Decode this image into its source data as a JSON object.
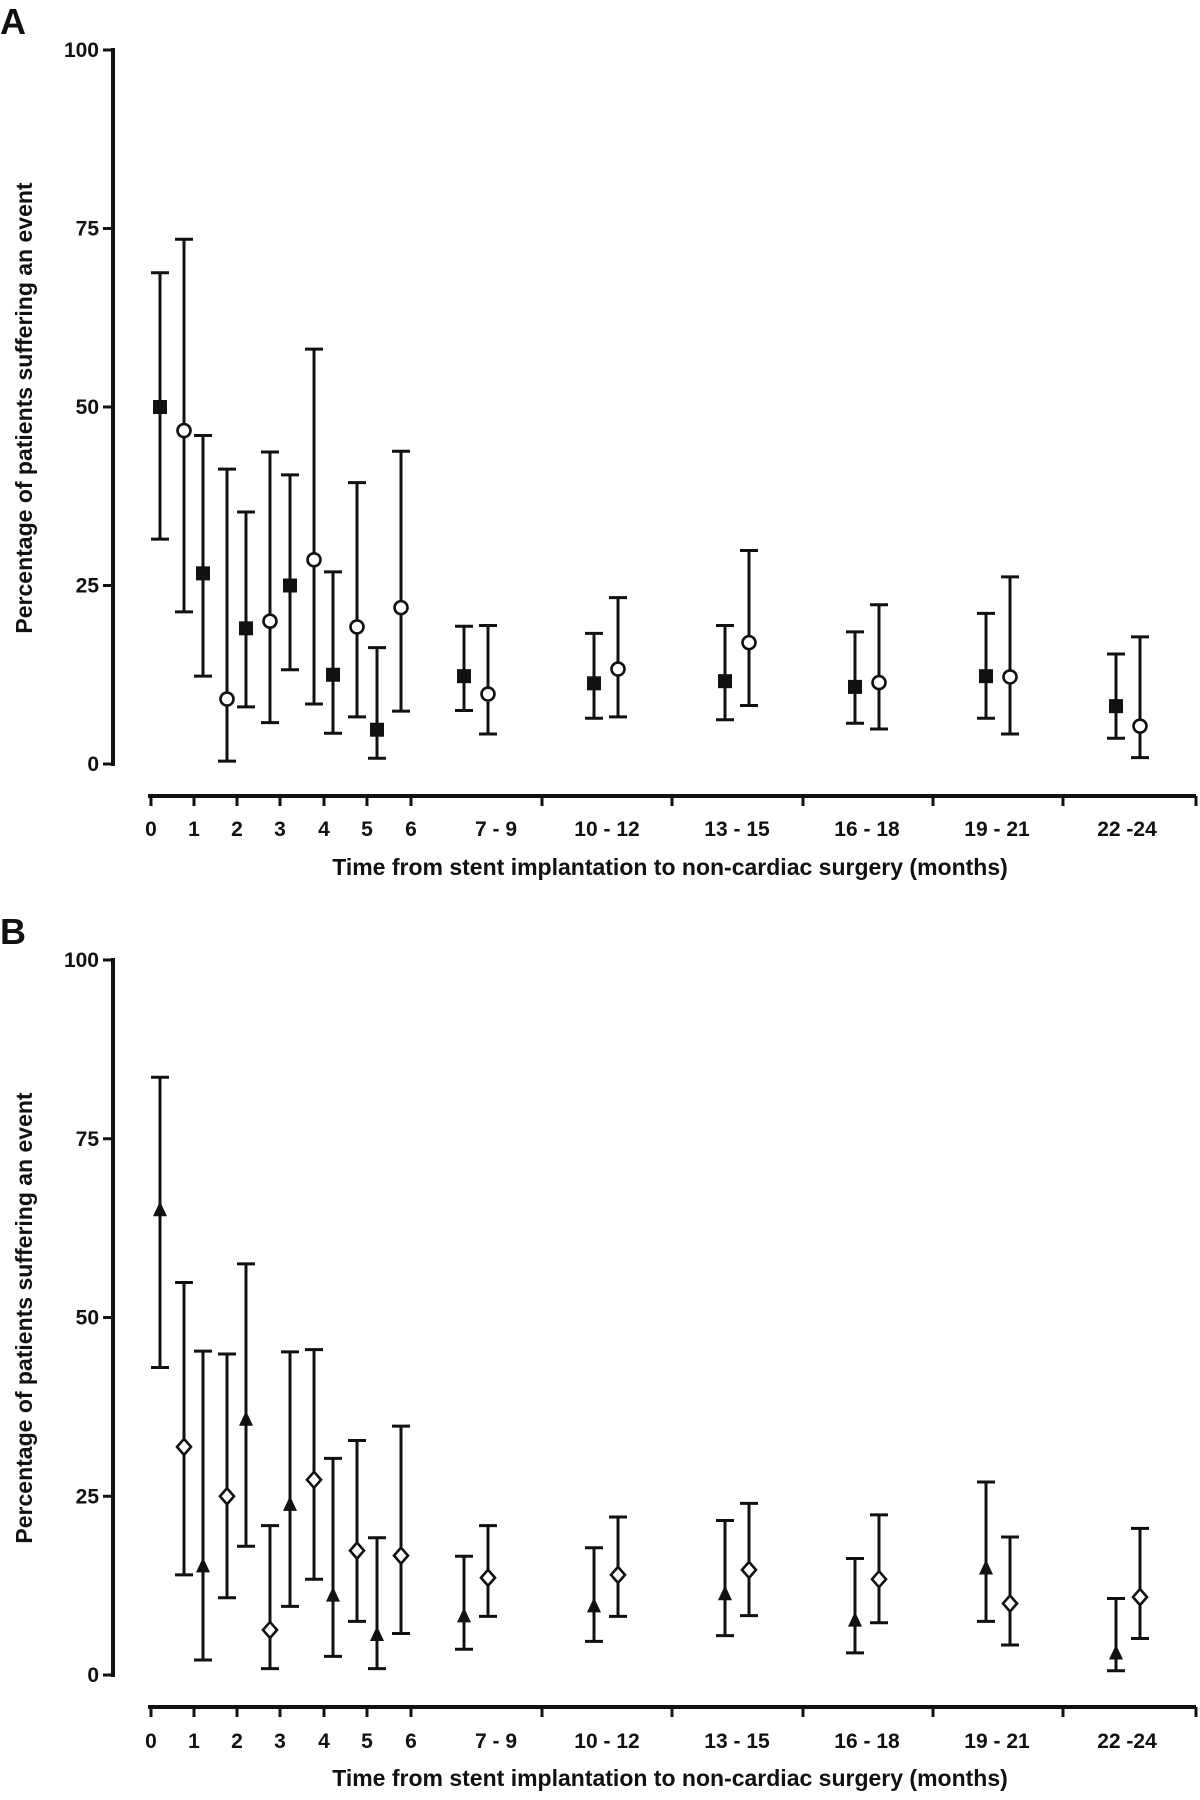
{
  "chart_data": [
    {
      "panel": "A",
      "type": "scatter",
      "ylabel": "Percentage of patients suffering an event",
      "xlabel": "Time from stent implantation to non-cardiac surgery (months)",
      "ylim": [
        0,
        100
      ],
      "y_ticks": [
        "0",
        "25",
        "50",
        "75",
        "100"
      ],
      "x_tick_labels": [
        "0",
        "1",
        "2",
        "3",
        "4",
        "5",
        "6",
        "7 - 9",
        "10 - 12",
        "13 - 15",
        "16 - 18",
        "19 - 21",
        "22 -24"
      ],
      "categories": [
        "0-1",
        "1-2",
        "2-3",
        "3-4",
        "4-5",
        "5-6",
        "7 - 9",
        "10 - 12",
        "13 - 15",
        "16 - 18",
        "19 - 21",
        "22 -24"
      ],
      "series": [
        {
          "marker": "filled-square",
          "color": "#111111",
          "values": [
            50,
            26.7,
            19,
            25,
            12.5,
            4.8,
            12.3,
            11.3,
            11.6,
            10.8,
            12.3,
            8.1
          ],
          "lower": [
            31.5,
            12.3,
            8,
            13.2,
            4.3,
            0.8,
            7.5,
            6.4,
            6.2,
            5.7,
            6.4,
            3.6
          ],
          "upper": [
            68.8,
            46,
            35.3,
            40.5,
            26.9,
            16.3,
            19.3,
            18.3,
            19.4,
            18.5,
            21.1,
            15.4
          ]
        },
        {
          "marker": "open-circle",
          "color": "#111111",
          "values": [
            46.7,
            9.1,
            20,
            28.6,
            19.2,
            21.9,
            9.8,
            13.3,
            17,
            11.4,
            12.2,
            5.3
          ],
          "lower": [
            21.3,
            0.4,
            5.8,
            8.4,
            6.6,
            7.4,
            4.2,
            6.6,
            8.2,
            4.9,
            4.2,
            0.9
          ],
          "upper": [
            73.5,
            41.3,
            43.7,
            58.1,
            39.4,
            43.8,
            19.4,
            23.3,
            29.9,
            22.3,
            26.2,
            17.8
          ]
        }
      ]
    },
    {
      "panel": "B",
      "type": "scatter",
      "ylabel": "Percentage of patients suffering an event",
      "xlabel": "Time from stent implantation to non-cardiac surgery (months)",
      "ylim": [
        0,
        100
      ],
      "y_ticks": [
        "0",
        "25",
        "50",
        "75",
        "100"
      ],
      "x_tick_labels": [
        "0",
        "1",
        "2",
        "3",
        "4",
        "5",
        "6",
        "7 - 9",
        "10 - 12",
        "13 - 15",
        "16 - 18",
        "19 - 21",
        "22 -24"
      ],
      "categories": [
        "0-1",
        "1-2",
        "2-3",
        "3-4",
        "4-5",
        "5-6",
        "7 - 9",
        "10 - 12",
        "13 - 15",
        "16 - 18",
        "19 - 21",
        "22 -24"
      ],
      "series": [
        {
          "marker": "filled-triangle",
          "color": "#111111",
          "values": [
            65,
            15.2,
            35.7,
            23.8,
            11.1,
            5.6,
            8.2,
            9.6,
            11.3,
            7.6,
            14.9,
            3
          ],
          "lower": [
            43,
            2.1,
            18,
            9.6,
            2.6,
            0.9,
            3.6,
            4.7,
            5.5,
            3.1,
            7.5,
            0.6
          ],
          "upper": [
            83.6,
            45.3,
            57.5,
            45.2,
            30.3,
            19.2,
            16.6,
            17.8,
            21.6,
            16.3,
            27,
            10.7
          ]
        },
        {
          "marker": "open-diamond",
          "color": "#111111",
          "values": [
            31.9,
            25,
            6.3,
            27.3,
            17.4,
            16.7,
            13.6,
            14,
            14.7,
            13.4,
            10,
            10.9
          ],
          "lower": [
            14,
            10.8,
            0.9,
            13.4,
            7.5,
            5.8,
            8.2,
            8.2,
            8.3,
            7.3,
            4.2,
            5.1
          ],
          "upper": [
            54.9,
            44.9,
            20.9,
            45.5,
            32.8,
            34.8,
            20.9,
            22.1,
            24,
            22.4,
            19.3,
            20.5
          ]
        }
      ]
    }
  ]
}
